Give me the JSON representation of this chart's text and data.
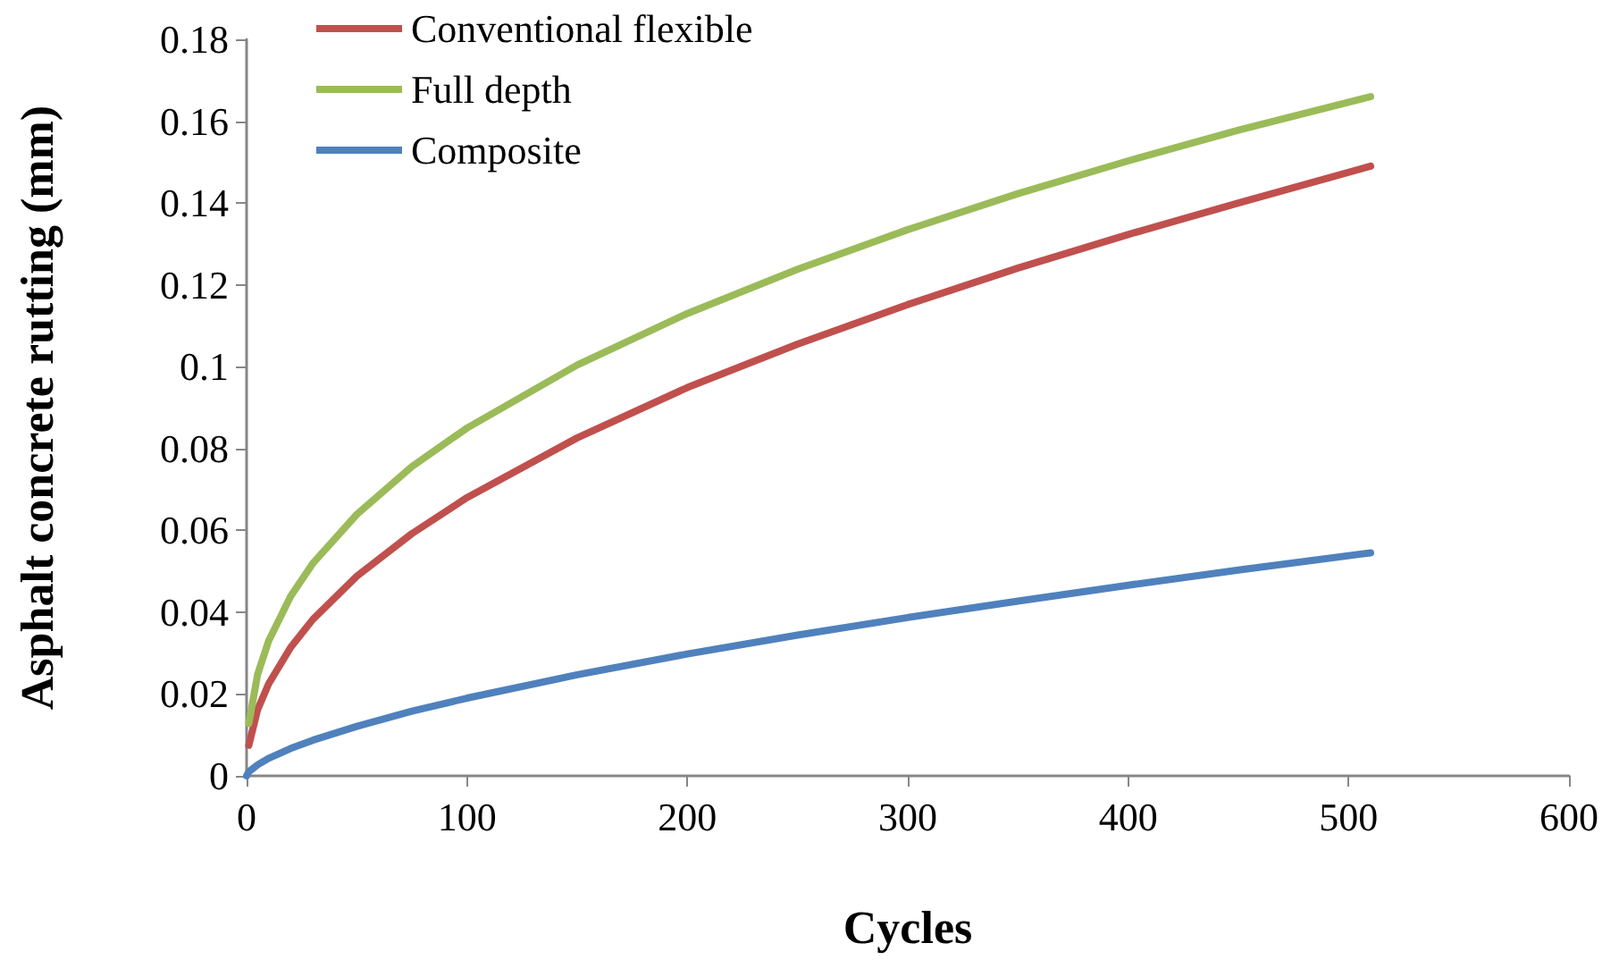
{
  "chart_data": {
    "type": "line",
    "xlabel": "Cycles",
    "ylabel": "Asphalt concrete rutting (mm)",
    "xlim": [
      0,
      600
    ],
    "xticks": [
      0,
      100,
      200,
      300,
      400,
      500,
      600
    ],
    "ylim": [
      0,
      0.18
    ],
    "yticks": [
      0,
      0.02,
      0.04,
      0.06,
      0.08,
      0.1,
      0.12,
      0.14,
      0.16,
      0.18
    ],
    "grid": false,
    "legend": "top left",
    "marker": "none",
    "line_style": "solid",
    "x": [
      1,
      5,
      10,
      20,
      30,
      50,
      75,
      100,
      150,
      200,
      250,
      300,
      350,
      400,
      450,
      510
    ],
    "series": [
      {
        "name": "Conventional flexible",
        "color": "#c0504d",
        "values": [
          0.0075,
          0.0162,
          0.0225,
          0.0314,
          0.0382,
          0.0488,
          0.0592,
          0.068,
          0.0826,
          0.0949,
          0.1055,
          0.1152,
          0.1241,
          0.1323,
          0.14,
          0.149
        ]
      },
      {
        "name": "Full depth",
        "color": "#9bbb59",
        "values": [
          0.0128,
          0.0248,
          0.033,
          0.0439,
          0.0519,
          0.0639,
          0.0756,
          0.085,
          0.1004,
          0.113,
          0.1238,
          0.1335,
          0.1423,
          0.1503,
          0.1578,
          0.166
        ]
      },
      {
        "name": "Composite",
        "color": "#4f81bd",
        "x": [
          0,
          1,
          5,
          10,
          20,
          30,
          50,
          75,
          100,
          150,
          200,
          250,
          300,
          350,
          400,
          450,
          510
        ],
        "values": [
          0,
          0.001,
          0.0027,
          0.0043,
          0.0067,
          0.0087,
          0.0121,
          0.0158,
          0.019,
          0.0247,
          0.0298,
          0.0344,
          0.0387,
          0.0427,
          0.0466,
          0.0503,
          0.0545
        ]
      }
    ]
  }
}
